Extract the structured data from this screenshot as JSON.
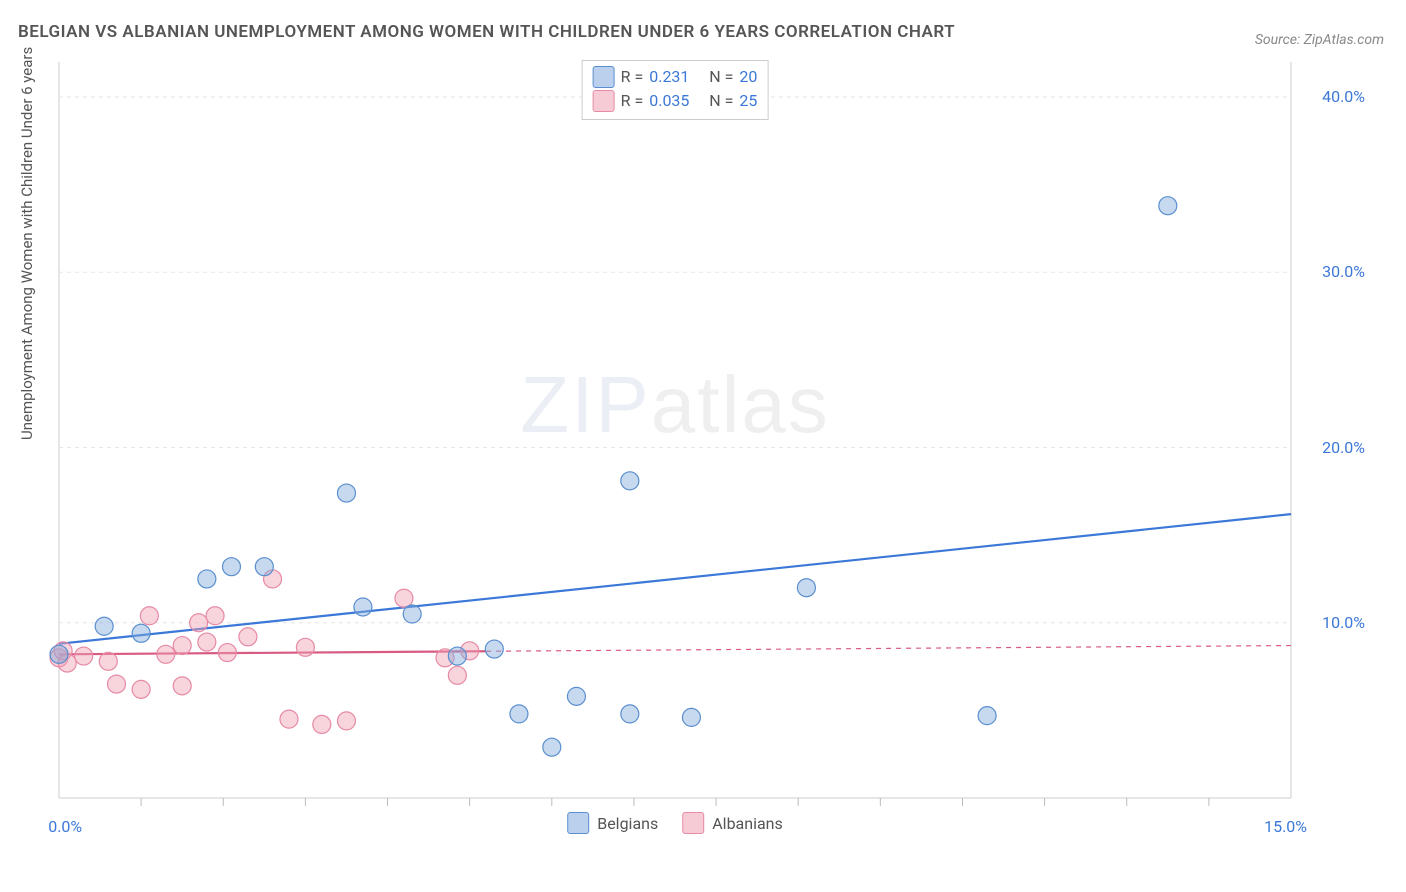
{
  "title": "BELGIAN VS ALBANIAN UNEMPLOYMENT AMONG WOMEN WITH CHILDREN UNDER 6 YEARS CORRELATION CHART",
  "source_label": "Source: ",
  "source_name": "ZipAtlas.com",
  "ylabel": "Unemployment Among Women with Children Under 6 years",
  "watermark_bold": "ZIP",
  "watermark_thin": "atlas",
  "chart": {
    "type": "scatter",
    "xlim": [
      0,
      15
    ],
    "ylim": [
      0,
      42
    ],
    "x_tick_label_min": "0.0%",
    "x_tick_label_max": "15.0%",
    "x_minor_ticks": [
      1,
      2,
      3,
      4,
      5,
      6,
      7,
      8,
      9,
      10,
      11,
      12,
      13,
      14
    ],
    "y_ticks": [
      10,
      20,
      30,
      40
    ],
    "y_tick_labels": [
      "10.0%",
      "20.0%",
      "30.0%",
      "40.0%"
    ],
    "background_color": "#ffffff",
    "grid_color": "#e6e6e6",
    "axis_color": "#cccccc",
    "tick_color": "#bbbbbb",
    "label_color": "#3b78d8",
    "text_color": "#555555",
    "marker_radius": 9,
    "marker_stroke_width": 1.2,
    "line_width": 2.2,
    "series": [
      {
        "name": "Belgians",
        "fill": "rgba(130,170,220,0.45)",
        "stroke": "#5a8fcf",
        "line_color": "#3b78d8",
        "line_dashed": false,
        "R_label": "R =",
        "R": "0.231",
        "N_label": "N =",
        "N": "20",
        "trend": {
          "x1": 0,
          "y1": 8.8,
          "x2": 15,
          "y2": 16.2,
          "solid_until_x": 15
        },
        "points": [
          {
            "x": 0.0,
            "y": 8.2
          },
          {
            "x": 0.55,
            "y": 9.8
          },
          {
            "x": 1.0,
            "y": 9.4
          },
          {
            "x": 1.8,
            "y": 12.5
          },
          {
            "x": 2.1,
            "y": 13.2
          },
          {
            "x": 2.5,
            "y": 13.2
          },
          {
            "x": 3.5,
            "y": 17.4
          },
          {
            "x": 3.7,
            "y": 10.9
          },
          {
            "x": 4.3,
            "y": 10.5
          },
          {
            "x": 4.85,
            "y": 8.1
          },
          {
            "x": 5.3,
            "y": 8.5
          },
          {
            "x": 5.6,
            "y": 4.8
          },
          {
            "x": 6.0,
            "y": 2.9
          },
          {
            "x": 6.3,
            "y": 5.8
          },
          {
            "x": 6.95,
            "y": 18.1
          },
          {
            "x": 6.95,
            "y": 4.8
          },
          {
            "x": 7.7,
            "y": 4.6
          },
          {
            "x": 9.1,
            "y": 12.0
          },
          {
            "x": 11.3,
            "y": 4.7
          },
          {
            "x": 13.5,
            "y": 33.8
          }
        ]
      },
      {
        "name": "Albanians",
        "fill": "rgba(240,160,180,0.45)",
        "stroke": "#e68aa5",
        "line_color": "#d85b82",
        "line_dashed": true,
        "R_label": "R =",
        "R": "0.035",
        "N_label": "N =",
        "N": "25",
        "trend": {
          "x1": 0,
          "y1": 8.2,
          "x2": 15,
          "y2": 8.7,
          "solid_until_x": 5.2
        },
        "points": [
          {
            "x": 0.0,
            "y": 8.0
          },
          {
            "x": 0.05,
            "y": 8.4
          },
          {
            "x": 0.1,
            "y": 7.7
          },
          {
            "x": 0.3,
            "y": 8.1
          },
          {
            "x": 0.6,
            "y": 7.8
          },
          {
            "x": 0.7,
            "y": 6.5
          },
          {
            "x": 1.0,
            "y": 6.2
          },
          {
            "x": 1.1,
            "y": 10.4
          },
          {
            "x": 1.3,
            "y": 8.2
          },
          {
            "x": 1.5,
            "y": 6.4
          },
          {
            "x": 1.5,
            "y": 8.7
          },
          {
            "x": 1.7,
            "y": 10.0
          },
          {
            "x": 1.8,
            "y": 8.9
          },
          {
            "x": 1.9,
            "y": 10.4
          },
          {
            "x": 2.05,
            "y": 8.3
          },
          {
            "x": 2.3,
            "y": 9.2
          },
          {
            "x": 2.6,
            "y": 12.5
          },
          {
            "x": 2.8,
            "y": 4.5
          },
          {
            "x": 3.0,
            "y": 8.6
          },
          {
            "x": 3.2,
            "y": 4.2
          },
          {
            "x": 3.5,
            "y": 4.4
          },
          {
            "x": 4.2,
            "y": 11.4
          },
          {
            "x": 4.7,
            "y": 8.0
          },
          {
            "x": 4.85,
            "y": 7.0
          },
          {
            "x": 5.0,
            "y": 8.4
          }
        ]
      }
    ],
    "legend_bottom": [
      {
        "label": "Belgians",
        "swatch": "blue"
      },
      {
        "label": "Albanians",
        "swatch": "pink"
      }
    ]
  }
}
